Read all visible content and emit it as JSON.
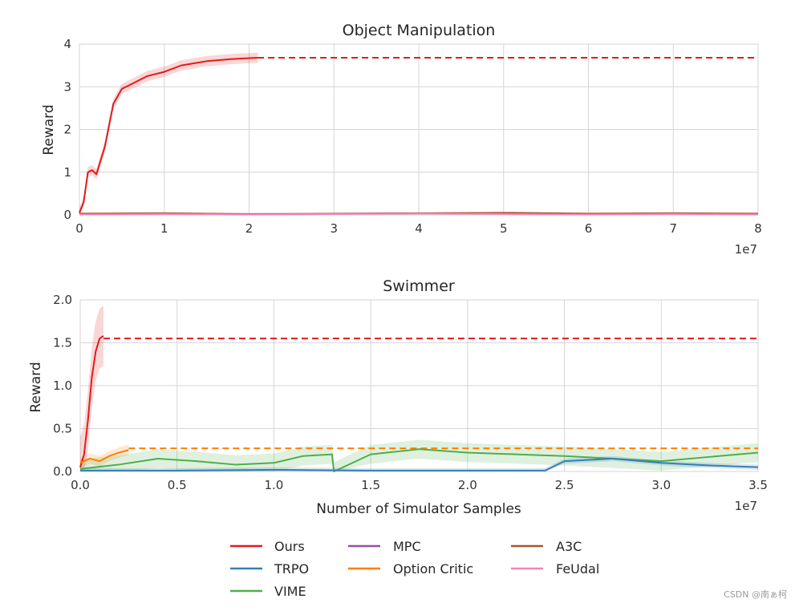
{
  "colors": {
    "ours": "#e41a1c",
    "trpo": "#377eb8",
    "vime": "#4daf4a",
    "mpc": "#984ea3",
    "option_critic": "#ff7f00",
    "a3c": "#a65628",
    "feudal": "#f781bf"
  },
  "watermark": "CSDN @南ぁ柯",
  "legend": {
    "entries": [
      {
        "name": "Ours",
        "color": "#e41a1c"
      },
      {
        "name": "TRPO",
        "color": "#377eb8"
      },
      {
        "name": "VIME",
        "color": "#4daf4a"
      },
      {
        "name": "MPC",
        "color": "#984ea3"
      },
      {
        "name": "Option Critic",
        "color": "#ff7f00"
      },
      {
        "name": "A3C",
        "color": "#a65628"
      },
      {
        "name": "FeUdal",
        "color": "#f781bf"
      }
    ]
  },
  "chart_data": [
    {
      "type": "line",
      "title": "Object Manipulation",
      "xlabel": "",
      "ylabel": "Reward",
      "x_multiplier": "1e7",
      "xlim": [
        0,
        8
      ],
      "ylim": [
        0,
        4
      ],
      "xticks": [
        0,
        1,
        2,
        3,
        4,
        5,
        6,
        7,
        8
      ],
      "yticks": [
        0,
        1,
        2,
        3,
        4
      ],
      "grid": true,
      "series": [
        {
          "name": "Ours",
          "color": "#e41a1c",
          "x": [
            0,
            0.05,
            0.1,
            0.15,
            0.2,
            0.3,
            0.4,
            0.5,
            0.6,
            0.7,
            0.8,
            1.0,
            1.2,
            1.5,
            1.8,
            2.1
          ],
          "y": [
            0.05,
            0.3,
            1.0,
            1.05,
            0.95,
            1.6,
            2.6,
            2.95,
            3.05,
            3.15,
            3.25,
            3.35,
            3.5,
            3.6,
            3.65,
            3.68
          ],
          "band": 0.12,
          "dashed_final_value": 3.68
        },
        {
          "name": "A3C",
          "color": "#a65628",
          "x": [
            0,
            1,
            2,
            3,
            4,
            5,
            6,
            7,
            8
          ],
          "y": [
            0.03,
            0.04,
            0.02,
            0.03,
            0.04,
            0.05,
            0.03,
            0.04,
            0.03
          ]
        },
        {
          "name": "FeUdal",
          "color": "#f781bf",
          "x": [
            0,
            1,
            2,
            3,
            4,
            5,
            6,
            7,
            8
          ],
          "y": [
            0.01,
            0.02,
            0.01,
            0.02,
            0.03,
            0.02,
            0.01,
            0.02,
            0.01
          ]
        }
      ]
    },
    {
      "type": "line",
      "title": "Swimmer",
      "xlabel": "Number of Simulator Samples",
      "ylabel": "Reward",
      "x_multiplier": "1e7",
      "xlim": [
        0,
        3.5
      ],
      "ylim": [
        0,
        2.0
      ],
      "xticks": [
        0.0,
        0.5,
        1.0,
        1.5,
        2.0,
        2.5,
        3.0,
        3.5
      ],
      "yticks": [
        0.0,
        0.5,
        1.0,
        1.5,
        2.0
      ],
      "grid": true,
      "series": [
        {
          "name": "Ours",
          "color": "#e41a1c",
          "x": [
            0,
            0.02,
            0.04,
            0.06,
            0.08,
            0.1,
            0.12
          ],
          "y": [
            0.05,
            0.2,
            0.6,
            1.1,
            1.4,
            1.55,
            1.58
          ],
          "band": 0.35,
          "dashed_final_value": 1.55
        },
        {
          "name": "Option Critic",
          "color": "#ff7f00",
          "x": [
            0,
            0.05,
            0.1,
            0.15,
            0.2,
            0.25
          ],
          "y": [
            0.1,
            0.15,
            0.12,
            0.18,
            0.22,
            0.25
          ],
          "band": 0.06,
          "dashed_final_value": 0.27
        },
        {
          "name": "VIME",
          "color": "#4daf4a",
          "x": [
            0,
            0.2,
            0.4,
            0.6,
            0.8,
            1.0,
            1.15,
            1.3,
            1.31,
            1.5,
            1.75,
            2.0,
            2.25,
            2.5,
            2.75,
            3.0,
            3.25,
            3.5
          ],
          "y": [
            0.03,
            0.08,
            0.15,
            0.12,
            0.08,
            0.1,
            0.18,
            0.2,
            0.0,
            0.2,
            0.26,
            0.22,
            0.2,
            0.18,
            0.15,
            0.12,
            0.17,
            0.22
          ],
          "band": 0.11
        },
        {
          "name": "TRPO",
          "color": "#377eb8",
          "x": [
            0,
            0.5,
            1.0,
            1.5,
            2.0,
            2.4,
            2.5,
            2.75,
            3.0,
            3.25,
            3.5
          ],
          "y": [
            0.01,
            0.01,
            0.02,
            0.01,
            0.01,
            0.01,
            0.12,
            0.15,
            0.1,
            0.07,
            0.05
          ],
          "band": 0.03
        }
      ]
    }
  ]
}
